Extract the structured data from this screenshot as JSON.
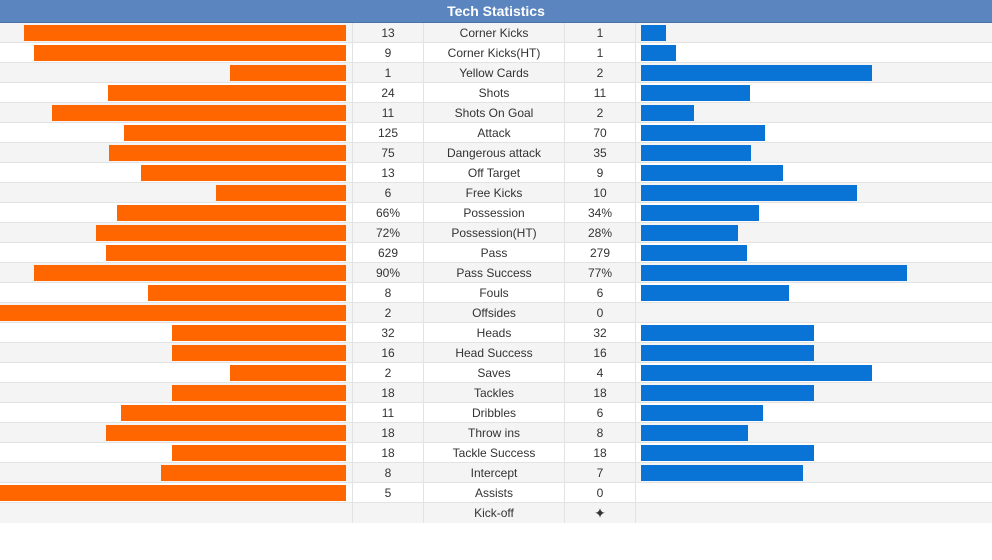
{
  "header": {
    "title": "Tech Statistics"
  },
  "colors": {
    "home": "#ff6600",
    "away": "#0a74d6"
  },
  "stats": [
    {
      "name": "Corner Kicks",
      "home": "13",
      "away": "1",
      "home_share": 0.929,
      "away_share": 0.071
    },
    {
      "name": "Corner Kicks(HT)",
      "home": "9",
      "away": "1",
      "home_share": 0.9,
      "away_share": 0.1
    },
    {
      "name": "Yellow Cards",
      "home": "1",
      "away": "2",
      "home_share": 0.333,
      "away_share": 0.667
    },
    {
      "name": "Shots",
      "home": "24",
      "away": "11",
      "home_share": 0.686,
      "away_share": 0.314
    },
    {
      "name": "Shots On Goal",
      "home": "11",
      "away": "2",
      "home_share": 0.846,
      "away_share": 0.154
    },
    {
      "name": "Attack",
      "home": "125",
      "away": "70",
      "home_share": 0.641,
      "away_share": 0.359
    },
    {
      "name": "Dangerous attack",
      "home": "75",
      "away": "35",
      "home_share": 0.682,
      "away_share": 0.318
    },
    {
      "name": "Off Target",
      "home": "13",
      "away": "9",
      "home_share": 0.591,
      "away_share": 0.409
    },
    {
      "name": "Free Kicks",
      "home": "6",
      "away": "10",
      "home_share": 0.375,
      "away_share": 0.625
    },
    {
      "name": "Possession",
      "home": "66%",
      "away": "34%",
      "home_share": 0.66,
      "away_share": 0.34
    },
    {
      "name": "Possession(HT)",
      "home": "72%",
      "away": "28%",
      "home_share": 0.72,
      "away_share": 0.28
    },
    {
      "name": "Pass",
      "home": "629",
      "away": "279",
      "home_share": 0.693,
      "away_share": 0.307
    },
    {
      "name": "Pass Success",
      "home": "90%",
      "away": "77%",
      "home_share": 0.9,
      "away_share": 0.77
    },
    {
      "name": "Fouls",
      "home": "8",
      "away": "6",
      "home_share": 0.571,
      "away_share": 0.429
    },
    {
      "name": "Offsides",
      "home": "2",
      "away": "0",
      "home_share": 1.0,
      "away_share": 0.0
    },
    {
      "name": "Heads",
      "home": "32",
      "away": "32",
      "home_share": 0.5,
      "away_share": 0.5
    },
    {
      "name": "Head Success",
      "home": "16",
      "away": "16",
      "home_share": 0.5,
      "away_share": 0.5
    },
    {
      "name": "Saves",
      "home": "2",
      "away": "4",
      "home_share": 0.333,
      "away_share": 0.667
    },
    {
      "name": "Tackles",
      "home": "18",
      "away": "18",
      "home_share": 0.5,
      "away_share": 0.5
    },
    {
      "name": "Dribbles",
      "home": "11",
      "away": "6",
      "home_share": 0.647,
      "away_share": 0.353
    },
    {
      "name": "Throw ins",
      "home": "18",
      "away": "8",
      "home_share": 0.692,
      "away_share": 0.308
    },
    {
      "name": "Tackle Success",
      "home": "18",
      "away": "18",
      "home_share": 0.5,
      "away_share": 0.5
    },
    {
      "name": "Intercept",
      "home": "8",
      "away": "7",
      "home_share": 0.533,
      "away_share": 0.467
    },
    {
      "name": "Assists",
      "home": "5",
      "away": "0",
      "home_share": 1.0,
      "away_share": 0.0
    }
  ],
  "kickoff": {
    "name": "Kick-off",
    "home": "",
    "away_icon": "kickoff-ball-icon"
  }
}
